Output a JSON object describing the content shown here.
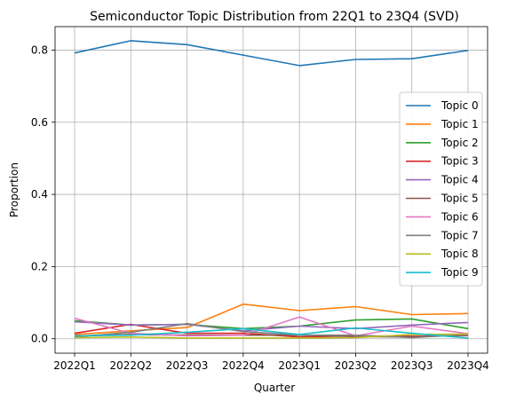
{
  "chart_data": {
    "type": "line",
    "title": "Semiconductor Topic Distribution from 22Q1 to 23Q4 (SVD)",
    "xlabel": "Quarter",
    "ylabel": "Proportion",
    "categories": [
      "2022Q1",
      "2022Q2",
      "2022Q3",
      "2022Q4",
      "2023Q1",
      "2023Q2",
      "2023Q3",
      "2023Q4"
    ],
    "ylim": [
      -0.04,
      0.865
    ],
    "yticks": [
      "0.0",
      "0.2",
      "0.4",
      "0.6",
      "0.8"
    ],
    "grid": true,
    "legend_position": "center-right",
    "series": [
      {
        "name": "Topic 0",
        "color": "#1f77b4",
        "values": [
          0.792,
          0.826,
          0.815,
          0.786,
          0.757,
          0.774,
          0.776,
          0.799
        ]
      },
      {
        "name": "Topic 1",
        "color": "#ff7f0e",
        "values": [
          0.012,
          0.022,
          0.031,
          0.096,
          0.078,
          0.089,
          0.067,
          0.07
        ]
      },
      {
        "name": "Topic 2",
        "color": "#2ca02c",
        "values": [
          0.05,
          0.038,
          0.04,
          0.028,
          0.035,
          0.052,
          0.055,
          0.028
        ]
      },
      {
        "name": "Topic 3",
        "color": "#d62728",
        "values": [
          0.015,
          0.04,
          0.015,
          0.015,
          0.005,
          0.008,
          0.007,
          0.009
        ]
      },
      {
        "name": "Topic 4",
        "color": "#9467bd",
        "values": [
          0.047,
          0.038,
          0.04,
          0.022,
          0.035,
          0.028,
          0.038,
          0.045
        ]
      },
      {
        "name": "Topic 5",
        "color": "#8c564b",
        "values": [
          0.008,
          0.012,
          0.01,
          0.01,
          0.01,
          0.006,
          0.005,
          0.01
        ]
      },
      {
        "name": "Topic 6",
        "color": "#e377c2",
        "values": [
          0.057,
          0.015,
          0.008,
          0.01,
          0.06,
          0.008,
          0.035,
          0.014
        ]
      },
      {
        "name": "Topic 7",
        "color": "#7f7f7f",
        "values": [
          0.005,
          0.018,
          0.042,
          0.02,
          0.01,
          0.01,
          0.003,
          0.012
        ]
      },
      {
        "name": "Topic 8",
        "color": "#bcbd22",
        "values": [
          0.003,
          0.005,
          0.002,
          0.002,
          0.002,
          0.003,
          0.012,
          0.013
        ]
      },
      {
        "name": "Topic 9",
        "color": "#17becf",
        "values": [
          0.008,
          0.01,
          0.018,
          0.028,
          0.012,
          0.03,
          0.015,
          0.002
        ]
      }
    ]
  }
}
